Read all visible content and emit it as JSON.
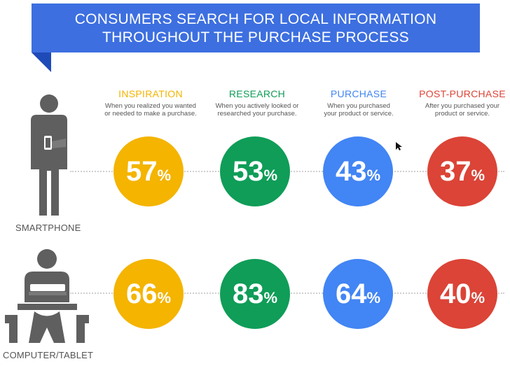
{
  "banner": {
    "line1": "CONSUMERS SEARCH FOR LOCAL INFORMATION",
    "line2": "THROUGHOUT THE PURCHASE PROCESS"
  },
  "colors": {
    "banner": "#3d6fe0",
    "inspiration": "#f4b400",
    "research": "#0f9d58",
    "purchase": "#4285f4",
    "post_purchase": "#db4437",
    "icon": "#5f5f5f"
  },
  "chart_data": {
    "type": "table",
    "title": "CONSUMERS SEARCH FOR LOCAL INFORMATION THROUGHOUT THE PURCHASE PROCESS",
    "stages": [
      {
        "name": "INSPIRATION",
        "description": [
          "When you realized you wanted",
          "or needed to make a purchase."
        ],
        "color": "#f4b400"
      },
      {
        "name": "RESEARCH",
        "description": [
          "When you actively looked or",
          "researched your purchase."
        ],
        "color": "#0f9d58"
      },
      {
        "name": "PURCHASE",
        "description": [
          "When you purchased",
          "your product or service."
        ],
        "color": "#4285f4"
      },
      {
        "name": "POST-PURCHASE",
        "description": [
          "After you purchased your",
          "product or service."
        ],
        "color": "#db4437"
      }
    ],
    "series": [
      {
        "name": "SMARTPHONE",
        "icon": "smartphone-user-icon",
        "values": [
          57,
          53,
          43,
          37
        ]
      },
      {
        "name": "COMPUTER/TABLET",
        "icon": "computer-tablet-user-icon",
        "values": [
          66,
          83,
          64,
          40
        ]
      }
    ],
    "unit": "%"
  }
}
